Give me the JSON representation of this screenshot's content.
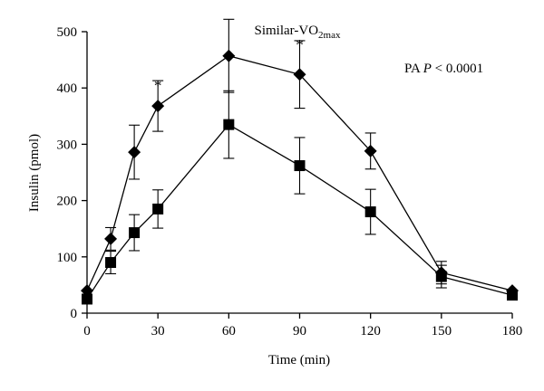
{
  "chart_data": {
    "type": "line",
    "title": "Similar-VO",
    "title_subscript": "2max",
    "annotation": {
      "prefix": "PA ",
      "italic": "P",
      "suffix": " < 0.0001"
    },
    "xlabel": "Time (min)",
    "ylabel": "Insulin (pmol)",
    "xlim": [
      0,
      180
    ],
    "ylim": [
      0,
      500
    ],
    "x_ticks": [
      0,
      30,
      60,
      90,
      120,
      150,
      180
    ],
    "y_ticks": [
      0,
      100,
      200,
      300,
      400,
      500
    ],
    "grid": false,
    "significance_marks": [
      {
        "x": 30,
        "y": 415,
        "label": "*"
      },
      {
        "x": 90,
        "y": 487,
        "label": "*"
      }
    ],
    "series": [
      {
        "marker": "diamond",
        "x": [
          0,
          10,
          20,
          30,
          60,
          90,
          120,
          150,
          180
        ],
        "y": [
          40,
          132,
          286,
          368,
          457,
          424,
          288,
          72,
          40
        ],
        "err": [
          0,
          20,
          48,
          45,
          65,
          60,
          32,
          20,
          0
        ]
      },
      {
        "marker": "square",
        "x": [
          0,
          10,
          20,
          30,
          60,
          90,
          120,
          150,
          180
        ],
        "y": [
          25,
          90,
          143,
          185,
          335,
          262,
          180,
          65,
          32
        ],
        "err": [
          0,
          20,
          32,
          34,
          60,
          50,
          40,
          20,
          0
        ]
      }
    ]
  }
}
